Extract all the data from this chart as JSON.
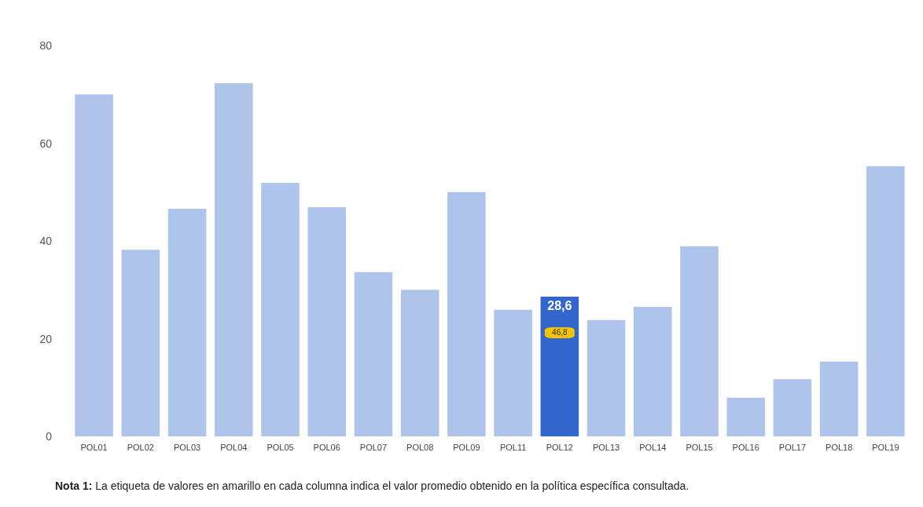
{
  "chart_data": {
    "type": "bar",
    "categories": [
      "POL01",
      "POL02",
      "POL03",
      "POL04",
      "POL05",
      "POL06",
      "POL07",
      "POL08",
      "POL09",
      "POL11",
      "POL12",
      "POL13",
      "POL14",
      "POL15",
      "POL16",
      "POL17",
      "POL18",
      "POL19"
    ],
    "values": [
      70.0,
      38.2,
      46.6,
      72.3,
      51.9,
      46.9,
      33.6,
      30.0,
      50.0,
      25.9,
      28.6,
      23.8,
      26.5,
      38.9,
      7.9,
      11.7,
      15.3,
      55.3
    ],
    "colors": [
      "#aec4ea",
      "#aec4ea",
      "#aec4ea",
      "#aec4ea",
      "#aec4ea",
      "#aec4ea",
      "#aec4ea",
      "#aec4ea",
      "#aec4ea",
      "#aec4ea",
      "#3366cc",
      "#aec4ea",
      "#aec4ea",
      "#aec4ea",
      "#aec4ea",
      "#aec4ea",
      "#aec4ea",
      "#aec4ea"
    ],
    "value_labels": [
      null,
      null,
      null,
      null,
      null,
      null,
      null,
      null,
      null,
      null,
      "28,6",
      null,
      null,
      null,
      null,
      null,
      null,
      null
    ],
    "ylim": [
      0,
      80
    ],
    "yticks": [
      0,
      20,
      40,
      60,
      80
    ],
    "grid": false,
    "annotations": [
      {
        "text": "46,8",
        "x": "POL12"
      },
      "Nota 1: La etiqueta de valores en amarillo en cada columna indica el valor promedio obtenido en la política específica consultada."
    ]
  }
}
